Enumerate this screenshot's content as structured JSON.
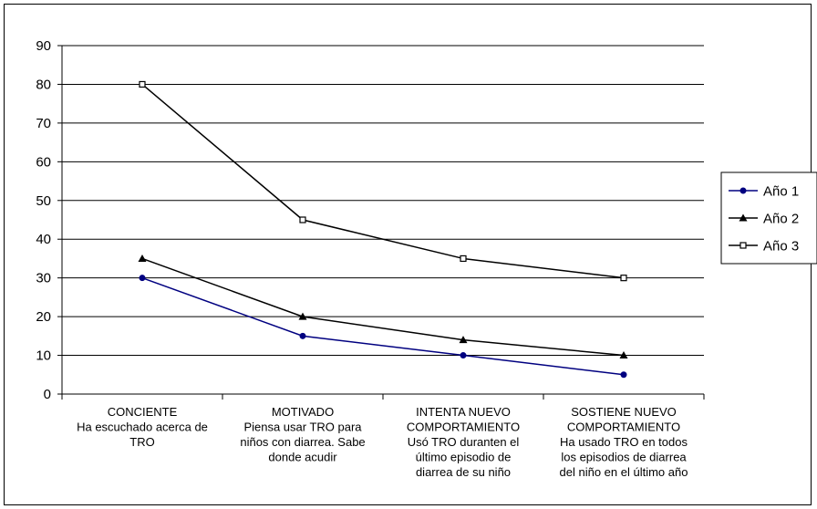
{
  "chart_data": {
    "type": "line",
    "title": "",
    "xlabel": "",
    "ylabel": "",
    "ylim": [
      0,
      90
    ],
    "yticks": [
      0,
      10,
      20,
      30,
      40,
      50,
      60,
      70,
      80,
      90
    ],
    "grid": "horizontal",
    "legend_position": "right",
    "categories": [
      [
        "CONCIENTE",
        "Ha escuchado acerca de",
        "TRO"
      ],
      [
        "MOTIVADO",
        "Piensa usar TRO para",
        "niños con diarrea.  Sabe",
        "donde acudir"
      ],
      [
        "INTENTA NUEVO",
        "COMPORTAMIENTO",
        "Usó TRO duranten el",
        "último episodio de",
        "diarrea de su niño"
      ],
      [
        "SOSTIENE NUEVO",
        "COMPORTAMIENTO",
        "Ha usado TRO en todos",
        "los episodios de diarrea",
        "del niño en el último año"
      ]
    ],
    "series": [
      {
        "name": "Año 1",
        "values": [
          30,
          15,
          10,
          5
        ],
        "color": "#000080",
        "marker": "circle"
      },
      {
        "name": "Año 2",
        "values": [
          35,
          20,
          14,
          10
        ],
        "color": "#000000",
        "marker": "triangle"
      },
      {
        "name": "Año 3",
        "values": [
          80,
          45,
          35,
          30
        ],
        "color": "#000000",
        "marker": "square"
      }
    ]
  }
}
